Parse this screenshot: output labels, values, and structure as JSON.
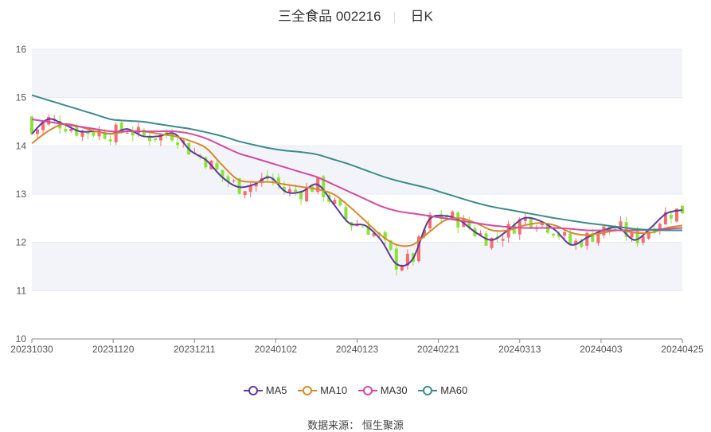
{
  "title": {
    "name": "三全食品 002216",
    "period": "日K"
  },
  "source": {
    "label": "数据来源：",
    "name": "恒生聚源"
  },
  "colors": {
    "up": "#f56c6c",
    "down": "#8be33a",
    "MA5": "#5b3b9c",
    "MA10": "#d68a2e",
    "MA30": "#d44aa0",
    "MA60": "#3d8b8b",
    "band": "#f3f4f9"
  },
  "chart_data": {
    "type": "candlestick",
    "y_ticks": [
      "10",
      "11",
      "12",
      "13",
      "14",
      "15",
      "16"
    ],
    "ylim": [
      10,
      16
    ],
    "x_ticks": [
      "20231030",
      "20231120",
      "20231211",
      "20240102",
      "20240123",
      "20240221",
      "20240313",
      "20240403",
      "20240425"
    ],
    "trading_days": 117,
    "grid": true,
    "legend_position": "bottom",
    "series": [
      {
        "name": "MA5",
        "color": "#5b3b9c",
        "values": [
          14.25,
          14.55,
          14.45,
          14.3,
          14.3,
          14.25,
          14.35,
          14.2,
          14.2,
          14.25,
          13.9,
          13.7,
          13.35,
          13.15,
          13.2,
          13.35,
          13.05,
          13.05,
          13.2,
          12.8,
          12.4,
          12.35,
          12.05,
          11.55,
          11.65,
          12.45,
          12.55,
          12.45,
          12.2,
          12.05,
          12.25,
          12.5,
          12.45,
          12.25,
          11.95,
          12.1,
          12.25,
          12.3,
          12.05,
          12.3,
          12.6,
          12.67
        ]
      },
      {
        "name": "MA10",
        "color": "#d68a2e",
        "values": [
          14.05,
          14.3,
          14.45,
          14.4,
          14.3,
          14.25,
          14.3,
          14.3,
          14.25,
          14.2,
          14.1,
          13.95,
          13.6,
          13.3,
          13.25,
          13.25,
          13.2,
          13.15,
          13.1,
          13.0,
          12.75,
          12.45,
          12.15,
          11.95,
          11.95,
          12.2,
          12.45,
          12.5,
          12.4,
          12.25,
          12.25,
          12.35,
          12.4,
          12.35,
          12.2,
          12.15,
          12.2,
          12.25,
          12.2,
          12.2,
          12.3,
          12.35
        ]
      },
      {
        "name": "MA30",
        "color": "#d44aa0",
        "values": [
          14.55,
          14.5,
          14.45,
          14.4,
          14.35,
          14.3,
          14.3,
          14.3,
          14.3,
          14.3,
          14.25,
          14.15,
          14.0,
          13.85,
          13.75,
          13.65,
          13.55,
          13.45,
          13.35,
          13.2,
          13.05,
          12.9,
          12.75,
          12.65,
          12.6,
          12.55,
          12.5,
          12.45,
          12.4,
          12.35,
          12.32,
          12.3,
          12.3,
          12.3,
          12.28,
          12.25,
          12.25,
          12.25,
          12.25,
          12.26,
          12.28,
          12.3
        ]
      },
      {
        "name": "MA60",
        "color": "#3d8b8b",
        "values": [
          15.05,
          14.95,
          14.85,
          14.75,
          14.65,
          14.55,
          14.52,
          14.5,
          14.45,
          14.4,
          14.35,
          14.28,
          14.2,
          14.1,
          14.02,
          13.95,
          13.9,
          13.87,
          13.82,
          13.72,
          13.62,
          13.5,
          13.38,
          13.28,
          13.2,
          13.12,
          13.02,
          12.92,
          12.82,
          12.74,
          12.68,
          12.62,
          12.56,
          12.5,
          12.45,
          12.4,
          12.36,
          12.32,
          12.28,
          12.26,
          12.25,
          12.25
        ]
      }
    ]
  }
}
